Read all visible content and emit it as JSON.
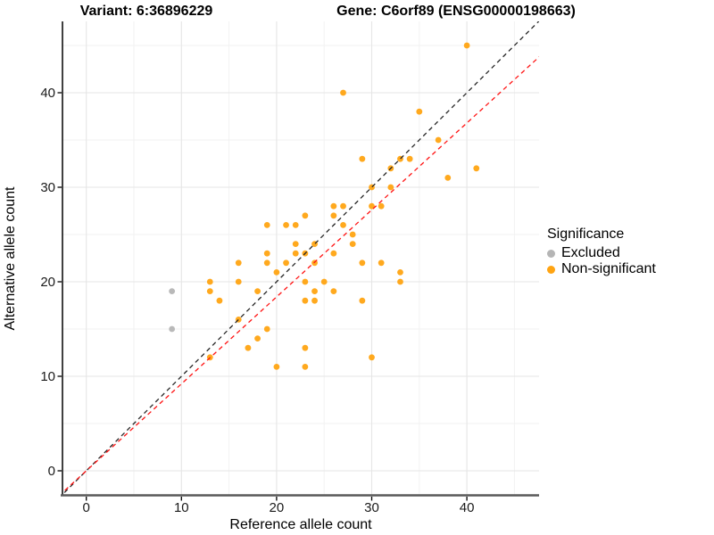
{
  "titles": {
    "variant": "Variant: 6:36896229",
    "gene": "Gene: C6orf89 (ENSG00000198663)"
  },
  "axes": {
    "x": {
      "label": "Reference allele count",
      "ticks": [
        0,
        10,
        20,
        30,
        40
      ]
    },
    "y": {
      "label": "Alternative allele count",
      "ticks": [
        0,
        10,
        20,
        30,
        40
      ]
    }
  },
  "legend": {
    "title": "Significance",
    "items": [
      {
        "label": "Excluded",
        "color": "#b5b5b5"
      },
      {
        "label": "Non-significant",
        "color": "#ffa412"
      }
    ]
  },
  "colors": {
    "excluded": "#b5b5b5",
    "non_significant": "#ffa412",
    "identity_line": "#262626",
    "ratio_line": "#ff1414",
    "grid_major": "#e5e5e5",
    "grid_minor": "#f2f2f2",
    "axis_line_left": "#000000",
    "axis_line_bottom": "#595959"
  },
  "chart_data": {
    "type": "scatter",
    "title": "Variant: 6:36896229 / Gene: C6orf89 (ENSG00000198663)",
    "xlabel": "Reference allele count",
    "ylabel": "Alternative allele count",
    "xlim": [
      -2.5,
      47.6
    ],
    "ylim": [
      -2.55,
      47.55
    ],
    "x_major_ticks": [
      0,
      10,
      20,
      30,
      40
    ],
    "y_major_ticks": [
      0,
      10,
      20,
      30,
      40
    ],
    "x_minor_ticks": [
      5,
      15,
      25,
      35,
      45
    ],
    "y_minor_ticks": [
      5,
      15,
      25,
      35,
      45
    ],
    "grid": true,
    "legend_position": "right",
    "series": [
      {
        "name": "Excluded",
        "color": "#b5b5b5",
        "points": [
          [
            9,
            19
          ],
          [
            9,
            15
          ]
        ]
      },
      {
        "name": "Non-significant",
        "color": "#ffa412",
        "points": [
          [
            40,
            45
          ],
          [
            27,
            40
          ],
          [
            35,
            38
          ],
          [
            37,
            35
          ],
          [
            29,
            33
          ],
          [
            33,
            33
          ],
          [
            34,
            33
          ],
          [
            32,
            32
          ],
          [
            41,
            32
          ],
          [
            38,
            31
          ],
          [
            30,
            30
          ],
          [
            32,
            30
          ],
          [
            26,
            28
          ],
          [
            27,
            28
          ],
          [
            30,
            28
          ],
          [
            31,
            28
          ],
          [
            23,
            27
          ],
          [
            26,
            27
          ],
          [
            19,
            26
          ],
          [
            21,
            26
          ],
          [
            22,
            26
          ],
          [
            27,
            26
          ],
          [
            28,
            25
          ],
          [
            22,
            24
          ],
          [
            24,
            24
          ],
          [
            28,
            24
          ],
          [
            19,
            23
          ],
          [
            22,
            23
          ],
          [
            23,
            23
          ],
          [
            26,
            23
          ],
          [
            16,
            22
          ],
          [
            19,
            22
          ],
          [
            21,
            22
          ],
          [
            24,
            22
          ],
          [
            29,
            22
          ],
          [
            31,
            22
          ],
          [
            20,
            21
          ],
          [
            33,
            21
          ],
          [
            13,
            20
          ],
          [
            16,
            20
          ],
          [
            23,
            20
          ],
          [
            25,
            20
          ],
          [
            33,
            20
          ],
          [
            13,
            19
          ],
          [
            18,
            19
          ],
          [
            24,
            19
          ],
          [
            26,
            19
          ],
          [
            14,
            18
          ],
          [
            23,
            18
          ],
          [
            24,
            18
          ],
          [
            29,
            18
          ],
          [
            16,
            16
          ],
          [
            19,
            15
          ],
          [
            18,
            14
          ],
          [
            17,
            13
          ],
          [
            23,
            13
          ],
          [
            13,
            12
          ],
          [
            30,
            12
          ],
          [
            20,
            11
          ],
          [
            23,
            11
          ]
        ]
      }
    ],
    "lines": [
      {
        "name": "identity",
        "slope": 1.0,
        "intercept": 0,
        "style": "dashed",
        "color": "#262626"
      },
      {
        "name": "expected-ratio",
        "slope": 0.92,
        "intercept": 0,
        "style": "dashed",
        "color": "#ff1414"
      }
    ]
  }
}
